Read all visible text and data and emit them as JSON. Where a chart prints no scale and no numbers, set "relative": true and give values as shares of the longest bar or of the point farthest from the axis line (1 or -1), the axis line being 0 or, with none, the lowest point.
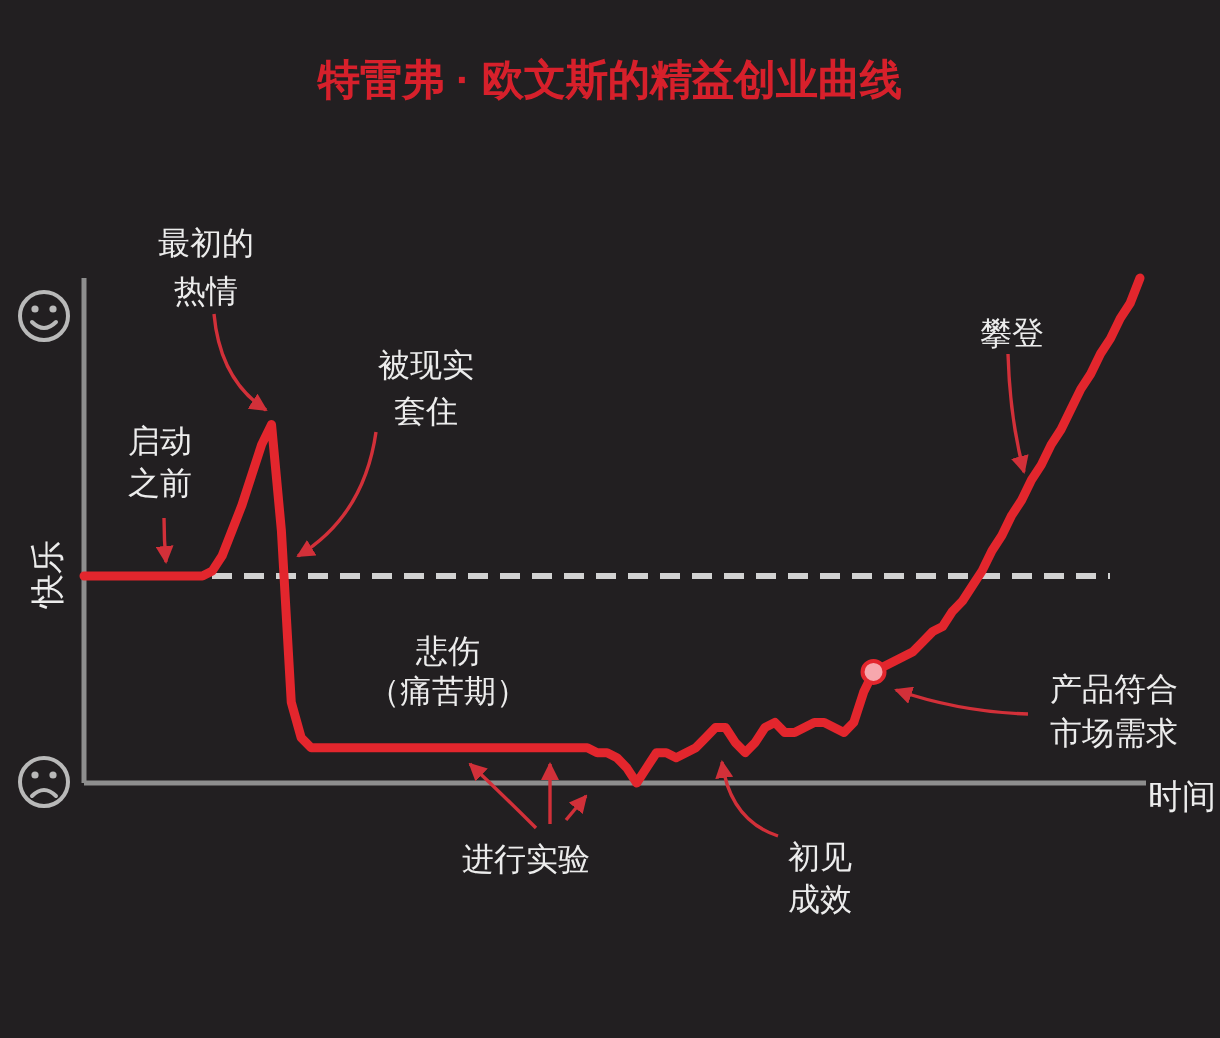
{
  "chart_data": {
    "type": "line",
    "title": "特雷弗 · 欧文斯的精益创业曲线",
    "xlabel": "时间",
    "ylabel": "快乐",
    "relative": true,
    "categories": [
      null,
      null,
      null,
      null,
      null,
      null,
      null,
      null,
      null,
      null,
      null,
      null,
      null,
      null,
      null,
      null,
      null,
      null,
      null,
      null,
      null,
      null,
      null,
      null,
      null,
      null,
      null,
      null,
      null,
      null,
      null,
      null,
      null,
      null,
      null,
      null,
      null,
      null,
      null,
      null,
      null,
      null,
      null,
      null,
      null,
      null,
      null,
      null,
      null,
      null,
      null,
      null,
      null,
      null,
      null,
      null,
      null,
      null,
      null,
      null,
      null,
      null,
      null,
      null,
      null,
      null,
      null,
      null,
      null,
      null,
      null,
      null,
      null,
      null,
      null,
      null,
      null,
      null,
      null,
      null,
      null,
      null,
      null,
      null,
      null,
      null,
      null,
      null,
      null,
      null,
      null,
      null,
      null,
      null,
      null,
      null,
      null,
      null,
      null,
      null,
      null,
      null,
      null,
      null,
      null,
      null,
      null,
      null
    ],
    "series": [
      {
        "color": "#e3262d",
        "values": [
          0.41,
          0.41,
          0.41,
          0.41,
          0.41,
          0.41,
          0.41,
          0.41,
          0.41,
          0.41,
          0.41,
          0.41,
          0.41,
          0.42,
          0.45,
          0.5,
          0.55,
          0.61,
          0.67,
          0.71,
          0.5,
          0.16,
          0.09,
          0.07,
          0.07,
          0.07,
          0.07,
          0.07,
          0.07,
          0.07,
          0.07,
          0.07,
          0.07,
          0.07,
          0.07,
          0.07,
          0.07,
          0.07,
          0.07,
          0.07,
          0.07,
          0.07,
          0.07,
          0.07,
          0.07,
          0.07,
          0.07,
          0.07,
          0.07,
          0.07,
          0.07,
          0.07,
          0.06,
          0.06,
          0.05,
          0.03,
          0,
          0.03,
          0.06,
          0.06,
          0.05,
          0.06,
          0.07,
          0.09,
          0.11,
          0.11,
          0.08,
          0.06,
          0.08,
          0.11,
          0.12,
          0.1,
          0.1,
          0.11,
          0.12,
          0.12,
          0.11,
          0.1,
          0.12,
          0.18,
          0.22,
          0.23,
          0.24,
          0.25,
          0.26,
          0.28,
          0.3,
          0.31,
          0.34,
          0.36,
          0.39,
          0.42,
          0.46,
          0.49,
          0.53,
          0.56,
          0.6,
          0.63,
          0.67,
          0.7,
          0.74,
          0.78,
          0.81,
          0.85,
          0.88,
          0.92,
          0.95,
          1
        ]
      },
      {
        "marker": "circle",
        "color": "#f7a7ad",
        "values": [
          null,
          null,
          null,
          null,
          null,
          null,
          null,
          null,
          null,
          null,
          null,
          null,
          null,
          null,
          null,
          null,
          null,
          null,
          null,
          null,
          null,
          null,
          null,
          null,
          null,
          null,
          null,
          null,
          null,
          null,
          null,
          null,
          null,
          null,
          null,
          null,
          null,
          null,
          null,
          null,
          null,
          null,
          null,
          null,
          null,
          null,
          null,
          null,
          null,
          null,
          null,
          null,
          null,
          null,
          null,
          null,
          null,
          null,
          null,
          null,
          null,
          null,
          null,
          null,
          null,
          null,
          null,
          null,
          null,
          null,
          null,
          null,
          null,
          null,
          null,
          null,
          null,
          null,
          null,
          null,
          0.22,
          null,
          null,
          null,
          null,
          null,
          null,
          null,
          null,
          null,
          null,
          null,
          null,
          null,
          null,
          null,
          null,
          null,
          null,
          null,
          null,
          null,
          null,
          null,
          null,
          null,
          null,
          null
        ]
      }
    ],
    "ref_lines": [
      {
        "axis": "y",
        "value": 0.41,
        "color": "#d2d2d2",
        "line_style": "dashed"
      }
    ],
    "annotations": [
      "最初的热情",
      "被现实套住",
      "启动之前",
      "悲伤（痛苦期）",
      "进行实验",
      "初见成效",
      "产品符合市场需求",
      "攀登"
    ]
  }
}
